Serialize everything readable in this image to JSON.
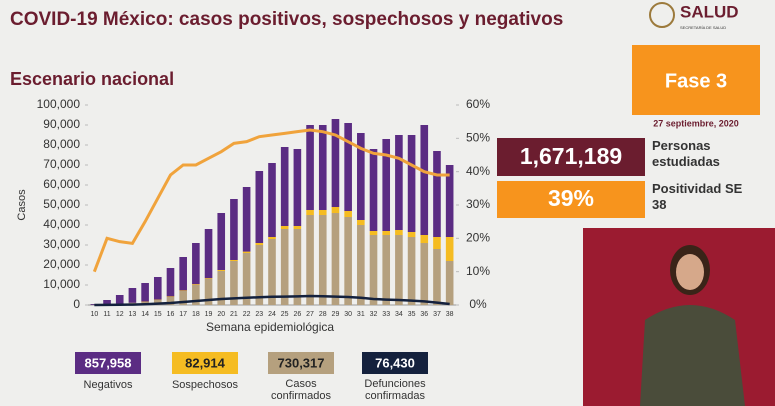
{
  "header": {
    "title": "COVID-19 México: casos positivos, sospechosos y negativos",
    "logo": "SALUD",
    "logo_sub": "SECRETARÍA DE SALUD",
    "subtitle": "Escenario nacional",
    "phase": "Fase 3",
    "date": "27 septiembre, 2020"
  },
  "panels": [
    {
      "value": "1,671,189",
      "label": "Personas estudiadas"
    },
    {
      "value": "39%",
      "label": "Positividad SE 38"
    }
  ],
  "chart_data": {
    "type": "bar",
    "stacked": true,
    "x_label": "Semana epidemiológica",
    "y_label": "Casos",
    "categories": [
      "10",
      "11",
      "12",
      "13",
      "14",
      "15",
      "16",
      "17",
      "18",
      "19",
      "20",
      "21",
      "22",
      "23",
      "24",
      "25",
      "26",
      "27",
      "28",
      "29",
      "30",
      "31",
      "32",
      "33",
      "34",
      "35",
      "36",
      "37",
      "38"
    ],
    "ylim": [
      0,
      100000
    ],
    "yticks": [
      0,
      {
        "value": 10000,
        "label": "10,000"
      },
      {
        "value": 20000,
        "label": "20,000"
      },
      {
        "value": 30000,
        "label": "30,000"
      },
      {
        "value": 40000,
        "label": "40,000"
      },
      {
        "value": 50000,
        "label": "50,000"
      },
      {
        "value": 60000,
        "label": "60,000"
      },
      {
        "value": 70000,
        "label": "70,000"
      },
      {
        "value": 80000,
        "label": "80,000"
      },
      {
        "value": 90000,
        "label": "90,000"
      },
      {
        "value": 100000,
        "label": "100,000"
      }
    ],
    "y2lim": [
      0,
      60
    ],
    "y2ticks": [
      {
        "value": 0,
        "label": "0%"
      },
      {
        "value": 10,
        "label": "10%"
      },
      {
        "value": 20,
        "label": "20%"
      },
      {
        "value": 30,
        "label": "30%"
      },
      {
        "value": 40,
        "label": "40%"
      },
      {
        "value": 50,
        "label": "50%"
      },
      {
        "value": 60,
        "label": "60%"
      }
    ],
    "series": [
      {
        "name": "Casos confirmados",
        "total": "730,317",
        "color": "#b5a07e",
        "values": [
          100,
          300,
          600,
          1000,
          1500,
          2500,
          4000,
          7000,
          10000,
          13000,
          17000,
          22000,
          26000,
          30000,
          33000,
          38000,
          38000,
          45000,
          45000,
          46000,
          44000,
          40000,
          35000,
          35000,
          35000,
          34000,
          31000,
          28000,
          22000
        ]
      },
      {
        "name": "Sospechosos",
        "total": "82,914",
        "color": "#f5bc22",
        "values": [
          0,
          0,
          100,
          100,
          200,
          200,
          300,
          300,
          400,
          400,
          500,
          500,
          700,
          1000,
          1000,
          1500,
          1500,
          2500,
          2500,
          3000,
          3000,
          2500,
          2000,
          2000,
          2500,
          2500,
          4000,
          6000,
          12000
        ]
      },
      {
        "name": "Negativos",
        "total": "857,958",
        "color": "#5b2c83",
        "values": [
          400,
          2200,
          4300,
          7400,
          9300,
          11300,
          14200,
          16700,
          20600,
          24600,
          28500,
          30500,
          32300,
          36000,
          37000,
          39500,
          38500,
          42500,
          42500,
          44000,
          44000,
          43500,
          41000,
          46000,
          47500,
          48500,
          55000,
          43000,
          36000
        ]
      },
      {
        "name": "Defunciones confirmadas",
        "total": "76,430",
        "color": "#14213d",
        "type": "line",
        "values": [
          0,
          50,
          100,
          200,
          400,
          700,
          1000,
          1500,
          2000,
          2500,
          3000,
          3300,
          3600,
          3900,
          4100,
          4200,
          4300,
          4500,
          4400,
          4200,
          4000,
          3600,
          3000,
          2700,
          2500,
          2200,
          1800,
          1200,
          500
        ]
      },
      {
        "color": "#f0a33c",
        "type": "line",
        "axis": "y2",
        "values": [
          10,
          20,
          19,
          18.5,
          25,
          32,
          39,
          42,
          42,
          44,
          46,
          48.5,
          49,
          50.5,
          51,
          51.5,
          52,
          52.5,
          52,
          51,
          49,
          47,
          45.5,
          45,
          44,
          42,
          40,
          39,
          39
        ]
      }
    ]
  }
}
